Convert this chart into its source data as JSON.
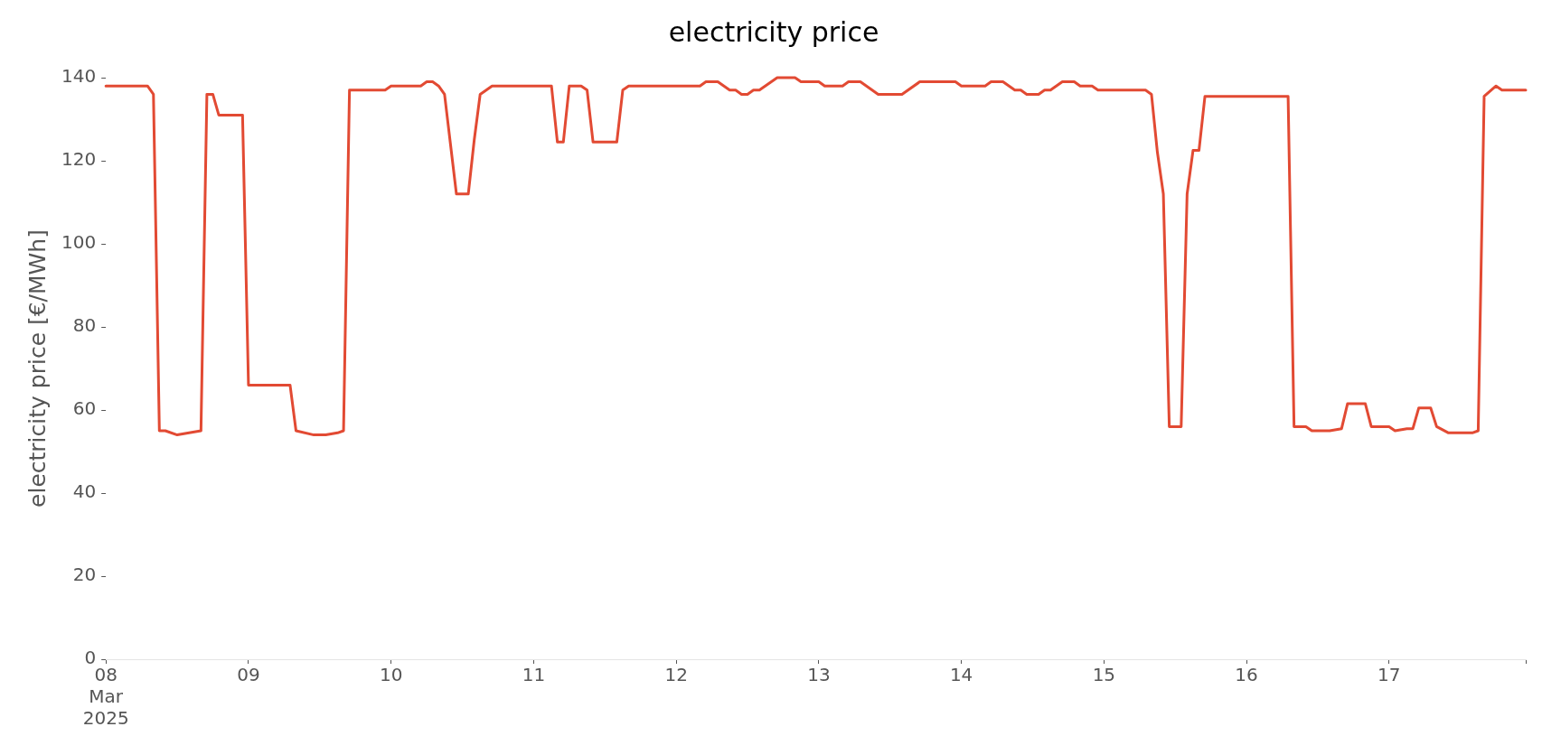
{
  "chart_data": {
    "type": "line",
    "title": "electricity price",
    "ylabel": "electricity price [€/MWh]",
    "xlim": [
      "2025-03-08T00:00",
      "2025-03-17T23:00"
    ],
    "xticks": [
      {
        "value": "2025-03-08",
        "label": "08\nMar\n2025"
      },
      {
        "value": "2025-03-09",
        "label": "09"
      },
      {
        "value": "2025-03-10",
        "label": "10"
      },
      {
        "value": "2025-03-11",
        "label": "11"
      },
      {
        "value": "2025-03-12",
        "label": "12"
      },
      {
        "value": "2025-03-13",
        "label": "13"
      },
      {
        "value": "2025-03-14",
        "label": "14"
      },
      {
        "value": "2025-03-15",
        "label": "15"
      },
      {
        "value": "2025-03-16",
        "label": "16"
      },
      {
        "value": "2025-03-17",
        "label": "17"
      },
      {
        "value": "2025-03-17T23:00",
        "label": null
      }
    ],
    "ylim": [
      0,
      140
    ],
    "yticks": [
      0,
      20,
      40,
      60,
      80,
      100,
      120,
      140
    ],
    "line_style": "solid",
    "marker": "none",
    "series": [
      {
        "color": "#e24a33",
        "x": [
          "2025-03-08T00:00",
          "2025-03-08T07:00",
          "2025-03-08T08:00",
          "2025-03-08T09:00",
          "2025-03-08T10:00",
          "2025-03-08T12:00",
          "2025-03-08T16:00",
          "2025-03-08T17:00",
          "2025-03-08T18:00",
          "2025-03-08T19:00",
          "2025-03-08T23:00",
          "2025-03-09T00:00",
          "2025-03-09T07:00",
          "2025-03-09T08:00",
          "2025-03-09T11:00",
          "2025-03-09T13:00",
          "2025-03-09T15:00",
          "2025-03-09T16:00",
          "2025-03-09T17:00",
          "2025-03-09T23:00",
          "2025-03-10T00:00",
          "2025-03-10T05:00",
          "2025-03-10T06:00",
          "2025-03-10T07:00",
          "2025-03-10T08:00",
          "2025-03-10T09:00",
          "2025-03-10T11:00",
          "2025-03-10T13:00",
          "2025-03-10T14:00",
          "2025-03-10T15:00",
          "2025-03-10T17:00",
          "2025-03-11T03:00",
          "2025-03-11T04:00",
          "2025-03-11T05:00",
          "2025-03-11T06:00",
          "2025-03-11T08:00",
          "2025-03-11T09:00",
          "2025-03-11T10:00",
          "2025-03-11T14:00",
          "2025-03-11T15:00",
          "2025-03-11T16:00",
          "2025-03-12T04:00",
          "2025-03-12T05:00",
          "2025-03-12T07:00",
          "2025-03-12T09:00",
          "2025-03-12T10:00",
          "2025-03-12T11:00",
          "2025-03-12T12:00",
          "2025-03-12T13:00",
          "2025-03-12T14:00",
          "2025-03-12T17:00",
          "2025-03-12T20:00",
          "2025-03-12T21:00",
          "2025-03-13T00:00",
          "2025-03-13T01:00",
          "2025-03-13T04:00",
          "2025-03-13T05:00",
          "2025-03-13T07:00",
          "2025-03-13T10:00",
          "2025-03-13T14:00",
          "2025-03-13T17:00",
          "2025-03-13T23:00",
          "2025-03-14T00:00",
          "2025-03-14T04:00",
          "2025-03-14T05:00",
          "2025-03-14T07:00",
          "2025-03-14T09:00",
          "2025-03-14T10:00",
          "2025-03-14T11:00",
          "2025-03-14T13:00",
          "2025-03-14T14:00",
          "2025-03-14T15:00",
          "2025-03-14T17:00",
          "2025-03-14T19:00",
          "2025-03-14T20:00",
          "2025-03-14T22:00",
          "2025-03-14T23:00",
          "2025-03-15T07:00",
          "2025-03-15T08:00",
          "2025-03-15T09:00",
          "2025-03-15T10:00",
          "2025-03-15T11:00",
          "2025-03-15T13:00",
          "2025-03-15T14:00",
          "2025-03-15T15:00",
          "2025-03-15T16:00",
          "2025-03-15T17:00",
          "2025-03-16T07:00",
          "2025-03-16T08:00",
          "2025-03-16T10:00",
          "2025-03-16T11:00",
          "2025-03-16T14:00",
          "2025-03-16T16:00",
          "2025-03-16T17:00",
          "2025-03-16T20:00",
          "2025-03-16T21:00",
          "2025-03-17T00:00",
          "2025-03-17T01:00",
          "2025-03-17T03:00",
          "2025-03-17T04:00",
          "2025-03-17T05:00",
          "2025-03-17T07:00",
          "2025-03-17T08:00",
          "2025-03-17T10:00",
          "2025-03-17T14:00",
          "2025-03-17T15:00",
          "2025-03-17T16:00",
          "2025-03-17T18:00",
          "2025-03-17T19:00",
          "2025-03-17T23:00"
        ],
        "values": [
          138,
          138,
          136,
          55,
          55,
          54,
          55,
          136,
          136,
          131,
          131,
          66,
          66,
          55,
          54,
          54,
          54.5,
          55,
          137,
          137,
          138,
          138,
          139,
          139,
          138,
          136,
          112,
          112,
          125,
          136,
          138,
          138,
          124.5,
          124.5,
          138,
          138,
          137,
          124.5,
          124.5,
          137,
          138,
          138,
          139,
          139,
          137,
          137,
          136,
          136,
          137,
          137,
          140,
          140,
          139,
          139,
          138,
          138,
          139,
          139,
          136,
          136,
          139,
          139,
          138,
          138,
          139,
          139,
          137,
          137,
          136,
          136,
          137,
          137,
          139,
          139,
          138,
          138,
          137,
          137,
          136,
          122,
          112,
          56,
          56,
          112,
          122.5,
          122.5,
          135.5,
          135.5,
          56,
          56,
          55,
          55,
          55.5,
          61.5,
          61.5,
          56,
          56,
          55,
          55.5,
          55.5,
          60.5,
          60.5,
          56,
          54.5,
          54.5,
          55,
          135.5,
          138,
          137,
          137
        ]
      }
    ]
  }
}
